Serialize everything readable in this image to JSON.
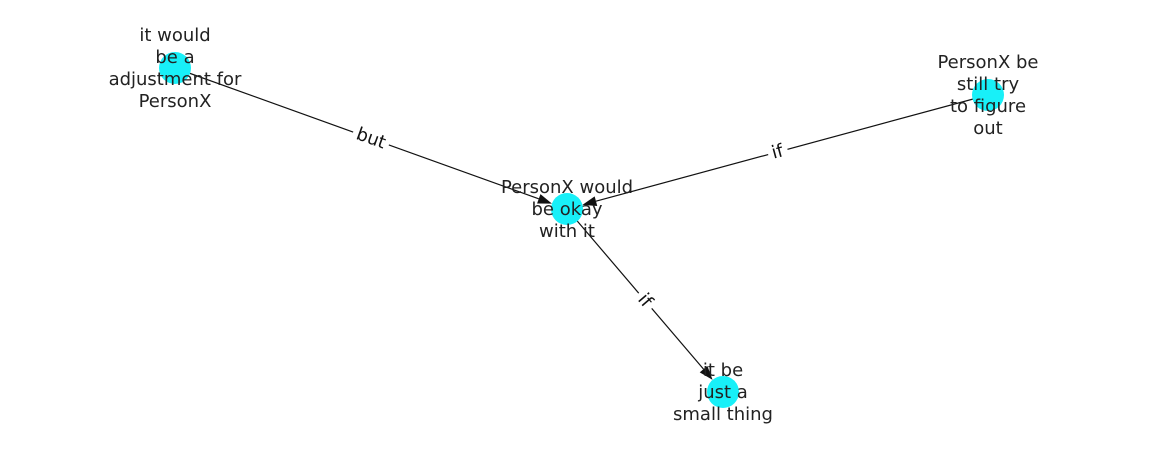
{
  "graph": {
    "nodes": [
      {
        "id": "center",
        "lines": [
          "PersonX would",
          "be okay",
          "with it"
        ]
      },
      {
        "id": "adjustment",
        "lines": [
          "it would",
          "be a",
          "adjustment for",
          "PersonX"
        ]
      },
      {
        "id": "figure-out",
        "lines": [
          "PersonX be",
          "still try",
          "to figure",
          "out"
        ]
      },
      {
        "id": "small-thing",
        "lines": [
          "it be",
          "just a",
          "small thing"
        ]
      }
    ],
    "edges": [
      {
        "from": "adjustment",
        "to": "center",
        "label": "but"
      },
      {
        "from": "figure-out",
        "to": "center",
        "label": "if"
      },
      {
        "from": "center",
        "to": "small-thing",
        "label": "if"
      }
    ],
    "colors": {
      "node": "#18f0f8",
      "edge": "#111111",
      "label": "#222222"
    }
  }
}
